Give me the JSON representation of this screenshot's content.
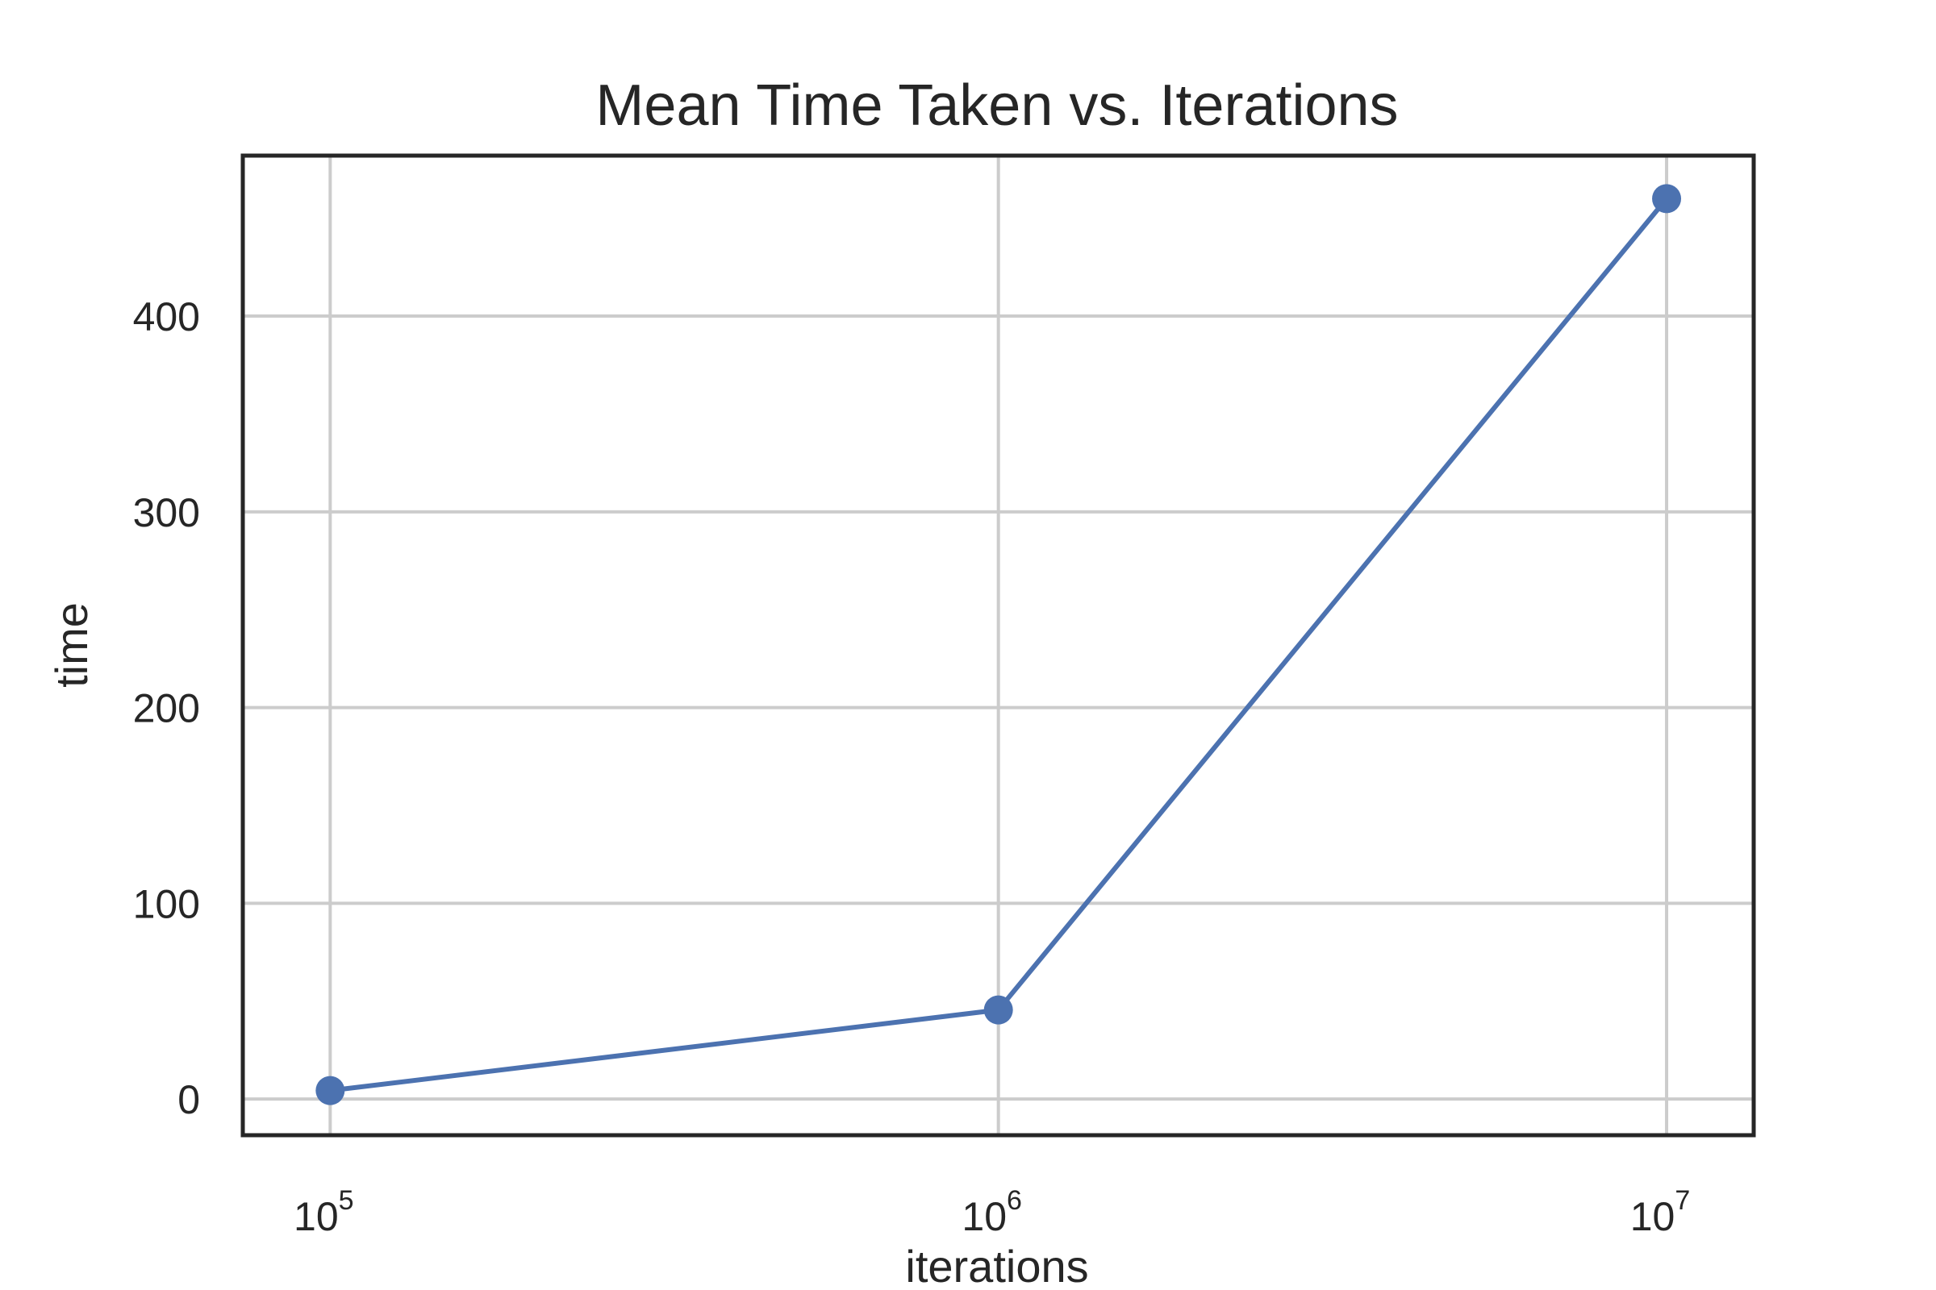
{
  "chart_data": {
    "type": "line",
    "title": "Mean Time Taken vs. Iterations",
    "xlabel": "iterations",
    "ylabel": "time",
    "xscale": "log",
    "x": [
      100000,
      1000000,
      10000000
    ],
    "series": [
      {
        "values": [
          4.3,
          45.5,
          460.0
        ],
        "color": "#4c72b0",
        "marker": "circle"
      }
    ],
    "xticks": [
      {
        "value": 100000,
        "base": "10",
        "exp": "5"
      },
      {
        "value": 1000000,
        "base": "10",
        "exp": "6"
      },
      {
        "value": 10000000,
        "base": "10",
        "exp": "7"
      }
    ],
    "yticks": [
      0,
      100,
      200,
      300,
      400
    ],
    "xlim": [
      74000,
      13500000
    ],
    "ylim": [
      -18.5,
      482
    ],
    "grid": true,
    "style": {
      "grid_color": "#cccccc",
      "frame_color": "#262626",
      "text_color": "#262626"
    }
  }
}
